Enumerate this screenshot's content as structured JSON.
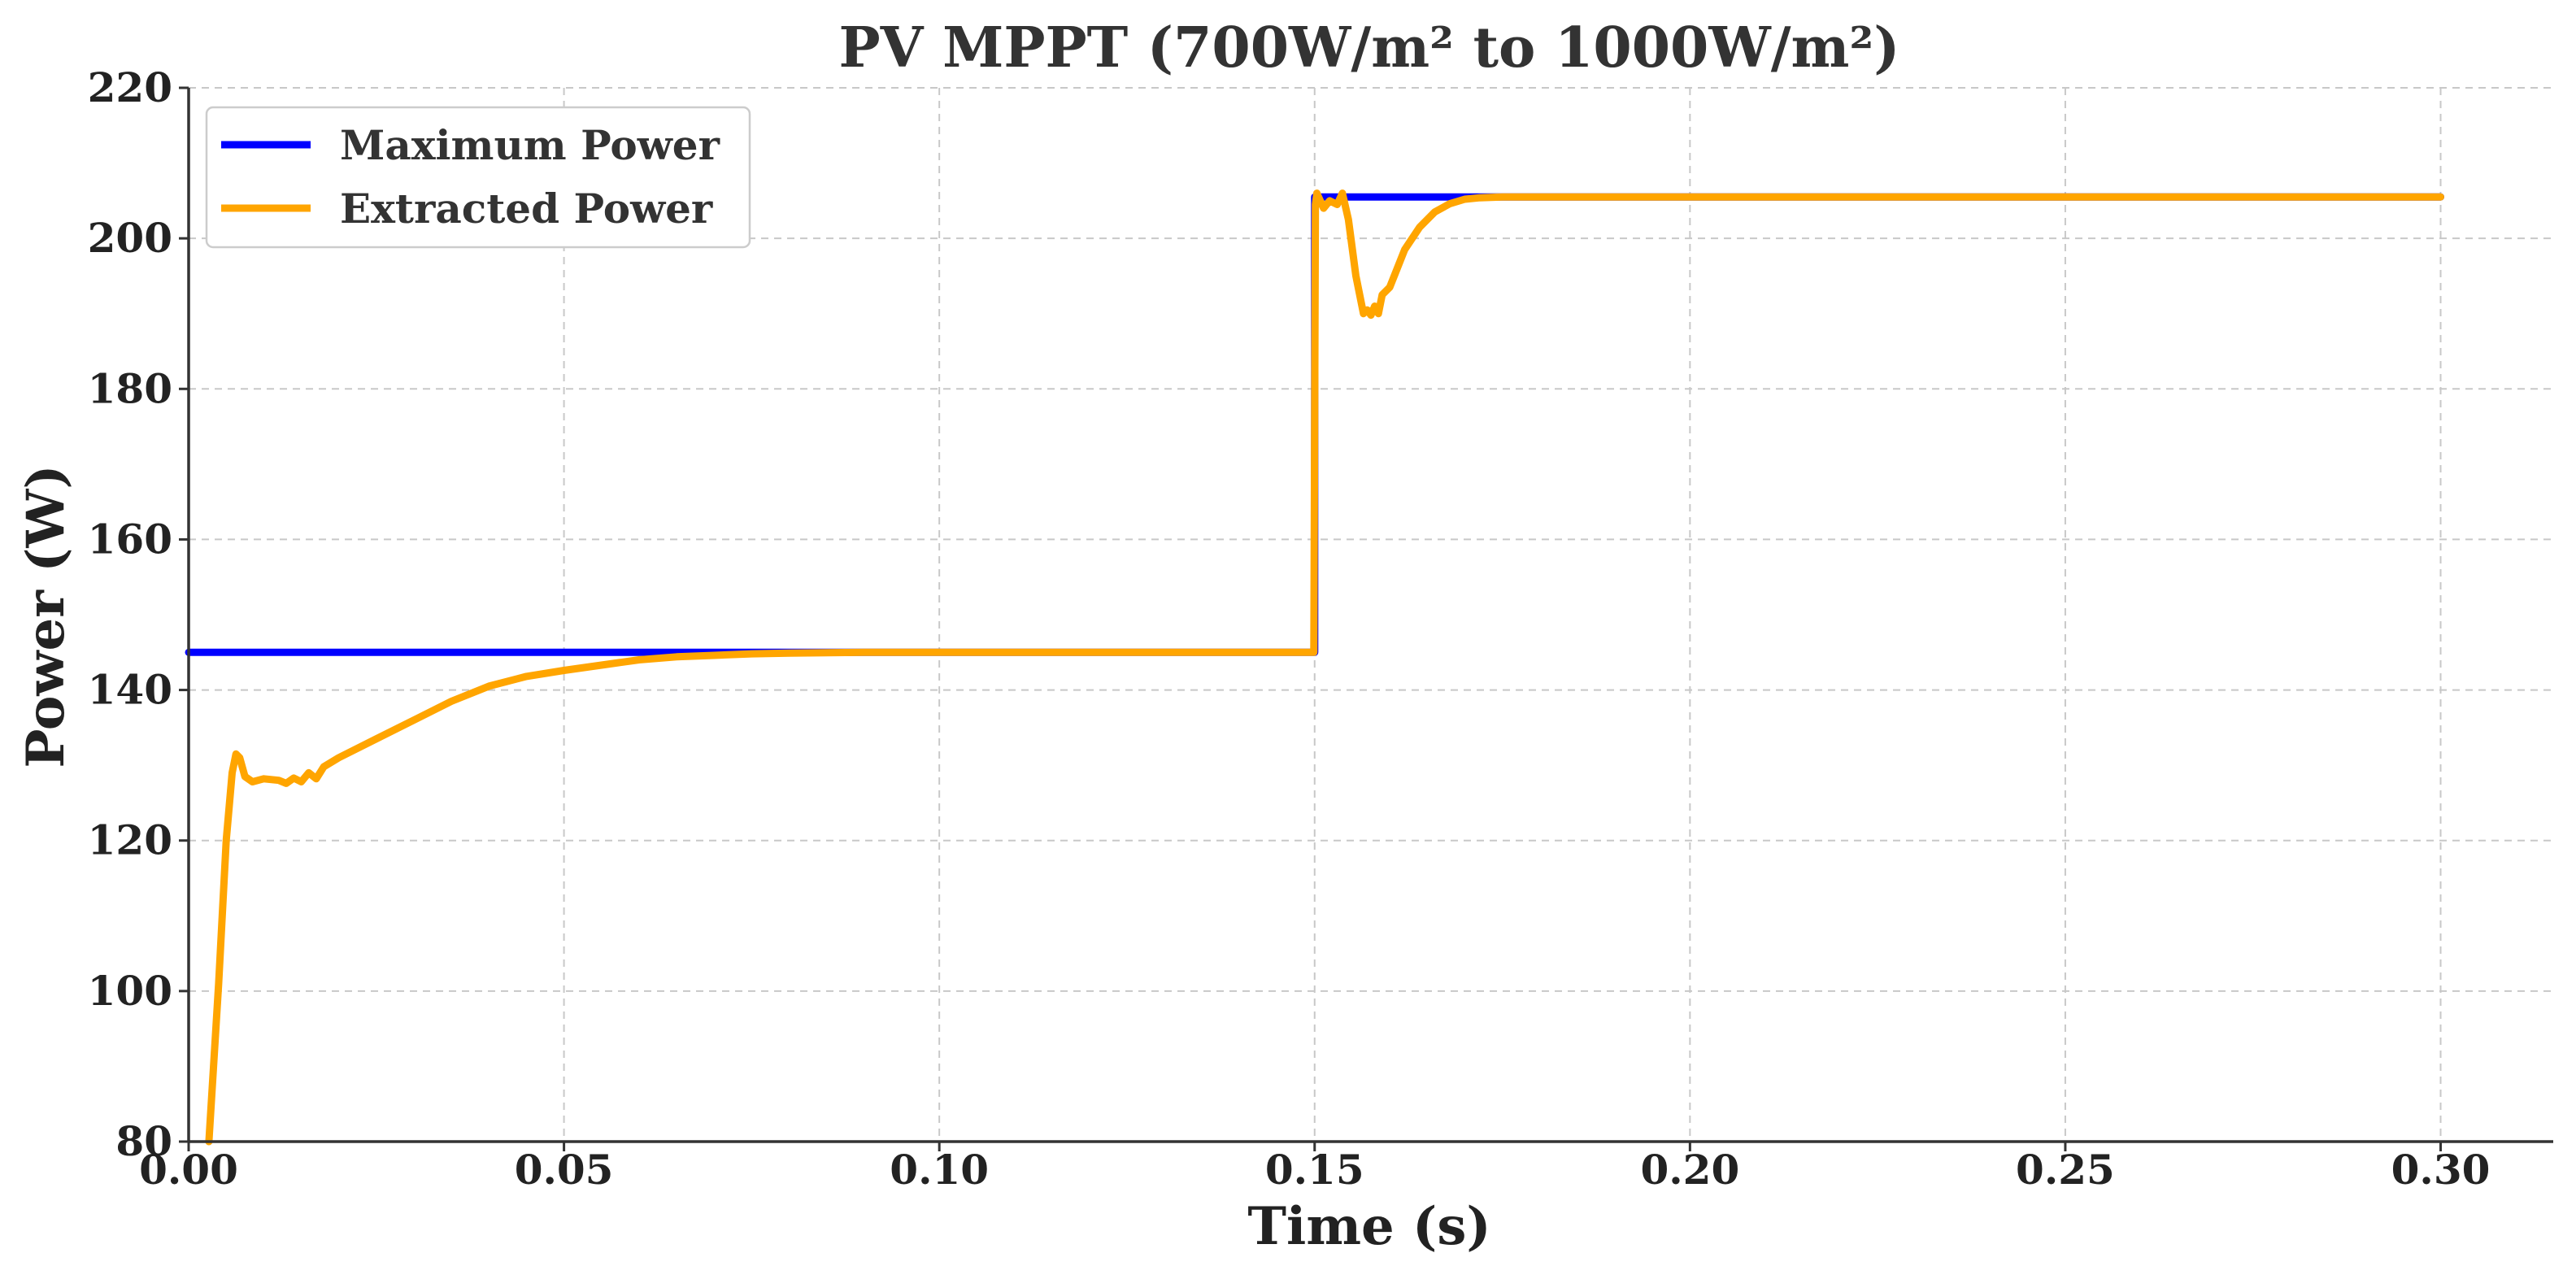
{
  "chart_data": {
    "type": "line",
    "title": "PV MPPT (700W/m² to 1000W/m²)",
    "xlabel": "Time (s)",
    "ylabel": "Power (W)",
    "xlim": [
      0.0,
      0.315
    ],
    "ylim": [
      80,
      220
    ],
    "xticks": [
      0.0,
      0.05,
      0.1,
      0.15,
      0.2,
      0.25,
      0.3
    ],
    "xtick_labels": [
      "0.00",
      "0.05",
      "0.10",
      "0.15",
      "0.20",
      "0.25",
      "0.30"
    ],
    "yticks": [
      80,
      100,
      120,
      140,
      160,
      180,
      200,
      220
    ],
    "ytick_labels": [
      "80",
      "100",
      "120",
      "140",
      "160",
      "180",
      "200",
      "220"
    ],
    "grid": true,
    "legend_position": "top-left",
    "series": [
      {
        "name": "Maximum Power",
        "color": "#0000ff",
        "x": [
          0.0,
          0.15,
          0.15,
          0.3
        ],
        "y": [
          145,
          145,
          205.5,
          205.5
        ]
      },
      {
        "name": "Extracted Power",
        "color": "#ffa500",
        "x": [
          0.0027,
          0.004,
          0.005,
          0.0058,
          0.0063,
          0.0068,
          0.0075,
          0.0085,
          0.01,
          0.012,
          0.013,
          0.014,
          0.015,
          0.016,
          0.017,
          0.018,
          0.02,
          0.025,
          0.03,
          0.035,
          0.04,
          0.045,
          0.05,
          0.055,
          0.06,
          0.065,
          0.07,
          0.075,
          0.08,
          0.09,
          0.1,
          0.11,
          0.12,
          0.13,
          0.14,
          0.1499,
          0.1501,
          0.1503,
          0.1512,
          0.152,
          0.153,
          0.1537,
          0.1545,
          0.1555,
          0.1565,
          0.157,
          0.1575,
          0.158,
          0.1585,
          0.159,
          0.16,
          0.161,
          0.162,
          0.164,
          0.166,
          0.168,
          0.17,
          0.172,
          0.175,
          0.18,
          0.2,
          0.25,
          0.3
        ],
        "y": [
          80,
          101,
          120,
          129,
          131.5,
          131,
          128.5,
          127.8,
          128.2,
          128.0,
          127.6,
          128.3,
          127.8,
          129.0,
          128.2,
          129.8,
          131.0,
          133.5,
          136.0,
          138.5,
          140.5,
          141.8,
          142.6,
          143.3,
          144.0,
          144.4,
          144.6,
          144.8,
          144.9,
          145.0,
          145.0,
          145.0,
          145.0,
          145.0,
          145.0,
          145.0,
          204.5,
          206.0,
          204.0,
          205.0,
          204.5,
          206.0,
          202.5,
          195.0,
          190.0,
          190.5,
          189.8,
          191.0,
          190.0,
          192.5,
          193.5,
          196.0,
          198.5,
          201.5,
          203.5,
          204.6,
          205.2,
          205.4,
          205.5,
          205.5,
          205.5,
          205.5,
          205.5
        ]
      }
    ]
  }
}
